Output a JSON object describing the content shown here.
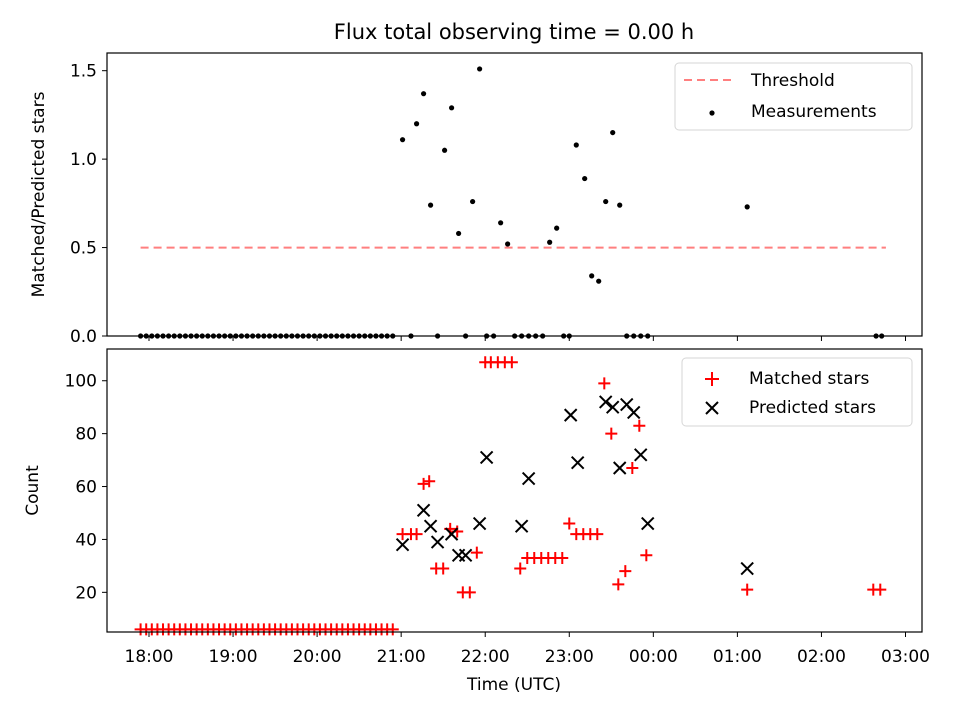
{
  "figure": {
    "title": "Flux total observing time = 0.00 h"
  },
  "chart_data": [
    {
      "type": "scatter",
      "ylabel": "Matched/Predicted stars",
      "xlabel": "",
      "ylim": [
        0,
        1.6
      ],
      "yticks": [
        0,
        0.5,
        1.0,
        1.5
      ],
      "ytick_labels": [
        "0.0",
        "0.5",
        "1.0",
        "1.5"
      ],
      "grid": false,
      "legend_position": "top-right",
      "threshold": {
        "name": "Threshold",
        "value": 0.5,
        "x_start": "17:54",
        "x_end": "02:46",
        "color": "#ff7f7f"
      },
      "series": [
        {
          "name": "Measurements",
          "color": "#000000",
          "marker": "dot",
          "x": [
            "17:54",
            "17:58",
            "18:02",
            "18:06",
            "18:10",
            "18:14",
            "18:18",
            "18:22",
            "18:26",
            "18:30",
            "18:34",
            "18:38",
            "18:42",
            "18:46",
            "18:50",
            "18:54",
            "18:58",
            "19:02",
            "19:06",
            "19:10",
            "19:14",
            "19:18",
            "19:22",
            "19:26",
            "19:30",
            "19:34",
            "19:38",
            "19:42",
            "19:46",
            "19:50",
            "19:54",
            "19:58",
            "20:02",
            "20:06",
            "20:10",
            "20:14",
            "20:18",
            "20:22",
            "20:26",
            "20:30",
            "20:34",
            "20:38",
            "20:42",
            "20:46",
            "20:50",
            "20:54",
            "21:01",
            "21:07",
            "21:11",
            "21:16",
            "21:21",
            "21:26",
            "21:31",
            "21:36",
            "21:41",
            "21:46",
            "21:51",
            "21:56",
            "22:01",
            "22:06",
            "22:11",
            "22:16",
            "22:21",
            "22:26",
            "22:31",
            "22:36",
            "22:41",
            "22:46",
            "22:51",
            "22:56",
            "23:00",
            "23:05",
            "23:11",
            "23:16",
            "23:21",
            "23:26",
            "23:31",
            "23:36",
            "23:41",
            "23:46",
            "23:51",
            "23:56",
            "01:07",
            "02:39",
            "02:43"
          ],
          "y": [
            0,
            0,
            0,
            0,
            0,
            0,
            0,
            0,
            0,
            0,
            0,
            0,
            0,
            0,
            0,
            0,
            0,
            0,
            0,
            0,
            0,
            0,
            0,
            0,
            0,
            0,
            0,
            0,
            0,
            0,
            0,
            0,
            0,
            0,
            0,
            0,
            0,
            0,
            0,
            0,
            0,
            0,
            0,
            0,
            0,
            0,
            1.11,
            0,
            1.2,
            1.37,
            0.74,
            0.0,
            1.05,
            1.29,
            0.58,
            0.0,
            0.76,
            1.51,
            0,
            0,
            0.64,
            0.52,
            0,
            0,
            0,
            0,
            0,
            0.53,
            0.61,
            0,
            0,
            1.08,
            0.89,
            0.34,
            0.31,
            0.76,
            1.15,
            0.74,
            0.0,
            0.0,
            0.0,
            0.0,
            0.73,
            0,
            0
          ]
        }
      ]
    },
    {
      "type": "scatter",
      "xlabel": "Time (UTC)",
      "ylabel": "Count",
      "ylim": [
        5,
        112
      ],
      "yticks": [
        20,
        40,
        60,
        80,
        100
      ],
      "ytick_labels": [
        "20",
        "40",
        "60",
        "80",
        "100"
      ],
      "xticks": [
        "18:00",
        "19:00",
        "20:00",
        "21:00",
        "22:00",
        "23:00",
        "00:00",
        "01:00",
        "02:00",
        "03:00"
      ],
      "grid": false,
      "legend_position": "top-right",
      "series": [
        {
          "name": "Matched stars",
          "color": "#ff0000",
          "marker": "plus",
          "x": [
            "17:54",
            "17:58",
            "18:02",
            "18:06",
            "18:10",
            "18:14",
            "18:18",
            "18:22",
            "18:26",
            "18:30",
            "18:34",
            "18:38",
            "18:42",
            "18:46",
            "18:50",
            "18:54",
            "18:58",
            "19:02",
            "19:06",
            "19:10",
            "19:14",
            "19:18",
            "19:22",
            "19:26",
            "19:30",
            "19:34",
            "19:38",
            "19:42",
            "19:46",
            "19:50",
            "19:54",
            "19:58",
            "20:02",
            "20:06",
            "20:10",
            "20:14",
            "20:18",
            "20:22",
            "20:26",
            "20:30",
            "20:34",
            "20:38",
            "20:42",
            "20:46",
            "20:50",
            "20:54",
            "21:01",
            "21:07",
            "21:11",
            "21:16",
            "21:20",
            "21:25",
            "21:30",
            "21:35",
            "21:40",
            "21:44",
            "21:49",
            "21:54",
            "22:00",
            "22:04",
            "22:09",
            "22:14",
            "22:19",
            "22:25",
            "22:30",
            "22:35",
            "22:40",
            "22:45",
            "22:50",
            "22:55",
            "23:00",
            "23:05",
            "23:10",
            "23:15",
            "23:20",
            "23:25",
            "23:30",
            "23:35",
            "23:40",
            "23:45",
            "23:50",
            "23:55",
            "01:07",
            "02:37",
            "02:42"
          ],
          "y": [
            6,
            6,
            6,
            6,
            6,
            6,
            6,
            6,
            6,
            6,
            6,
            6,
            6,
            6,
            6,
            6,
            6,
            6,
            6,
            6,
            6,
            6,
            6,
            6,
            6,
            6,
            6,
            6,
            6,
            6,
            6,
            6,
            6,
            6,
            6,
            6,
            6,
            6,
            6,
            6,
            6,
            6,
            6,
            6,
            6,
            6,
            42,
            42,
            42,
            61,
            62,
            29,
            29,
            44,
            43,
            20,
            20,
            35,
            107,
            107,
            107,
            107,
            107,
            29,
            33,
            33,
            33,
            33,
            33,
            33,
            46,
            42,
            42,
            42,
            42,
            99,
            80,
            23,
            28,
            67,
            83,
            34,
            21,
            21,
            21
          ]
        },
        {
          "name": "Predicted stars",
          "color": "#000000",
          "marker": "x",
          "x": [
            "21:01",
            "21:16",
            "21:21",
            "21:26",
            "21:36",
            "21:41",
            "21:46",
            "21:56",
            "22:01",
            "22:26",
            "22:31",
            "23:01",
            "23:06",
            "23:26",
            "23:31",
            "23:36",
            "23:41",
            "23:46",
            "23:51",
            "23:56",
            "01:07"
          ],
          "y": [
            38,
            51,
            45,
            39,
            42,
            34,
            34,
            46,
            71,
            45,
            63,
            87,
            69,
            92,
            90,
            67,
            91,
            88,
            72,
            46,
            29
          ]
        }
      ]
    }
  ]
}
